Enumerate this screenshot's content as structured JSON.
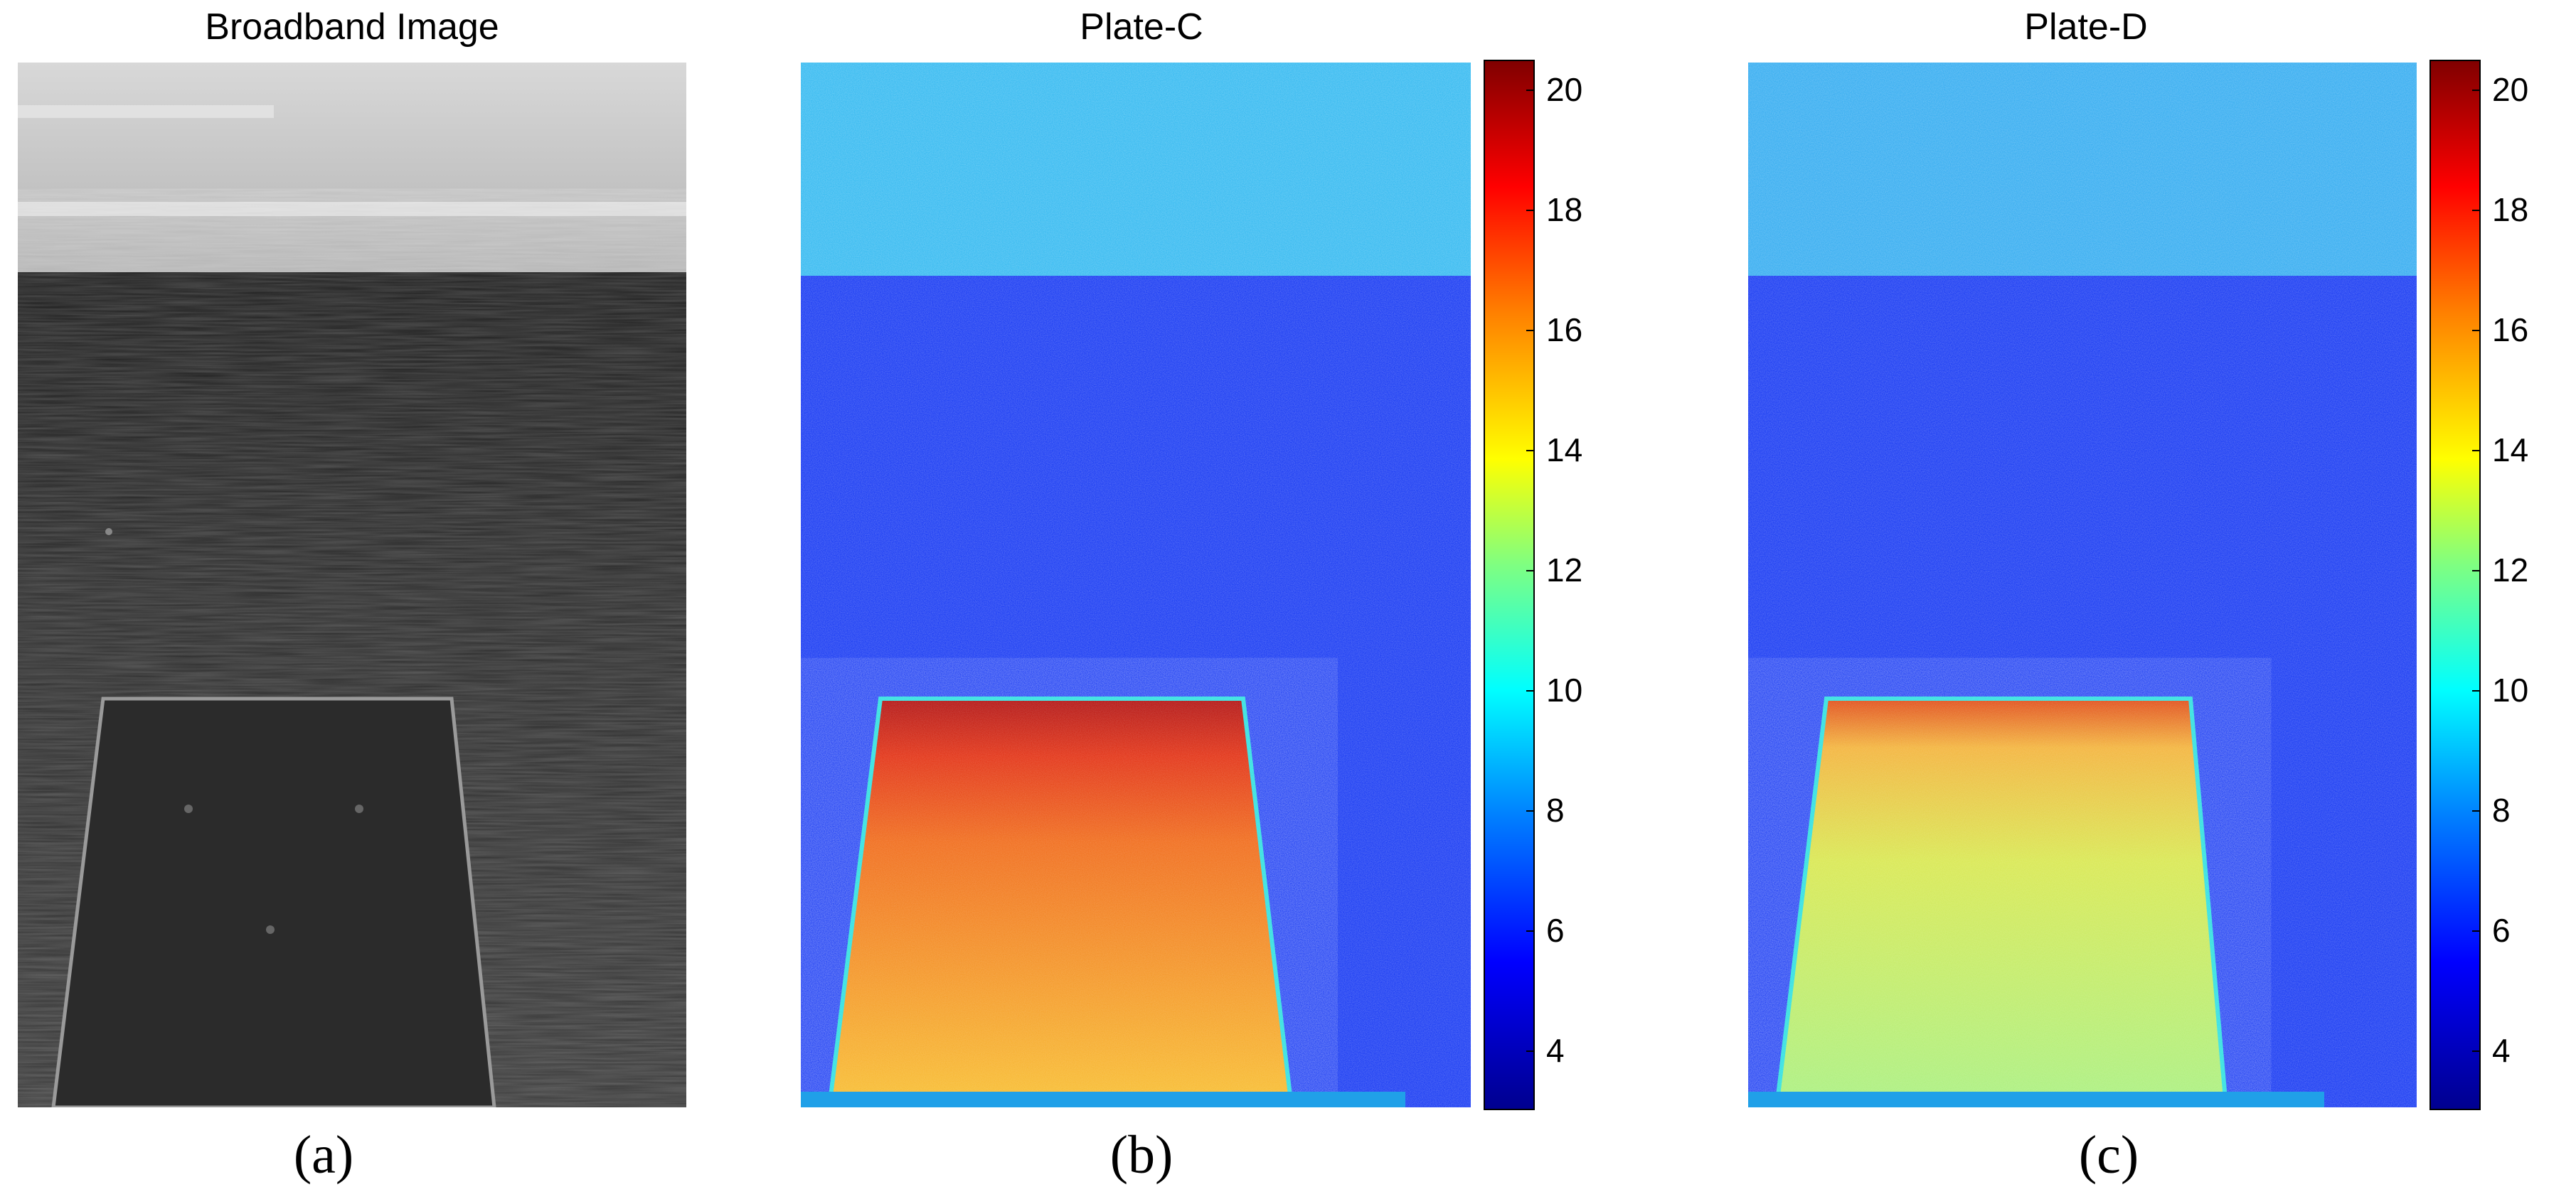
{
  "panels": [
    {
      "title": "Broadband Image",
      "caption": "(a)"
    },
    {
      "title": "Plate-C",
      "caption": "(b)"
    },
    {
      "title": "Plate-D",
      "caption": "(c)"
    }
  ],
  "colorbar": {
    "ticks": [
      "20",
      "18",
      "16",
      "14",
      "12",
      "10",
      "8",
      "6",
      "4"
    ],
    "tick_values": [
      20,
      18,
      16,
      14,
      12,
      10,
      8,
      6,
      4
    ],
    "range": [
      3,
      20.5
    ],
    "colormap": "jet"
  },
  "colors": {
    "sky_gray": "#c8c8c8",
    "water_dark": "#2a2a2a",
    "plate_dark": "#2b2b2b",
    "sky_cyan": "#28b8f0",
    "water_blue": "#0a2cf0",
    "plate_c_hot": "#e63a10",
    "plate_c_warm": "#f7a020",
    "plate_d_warm": "#d8e850"
  }
}
